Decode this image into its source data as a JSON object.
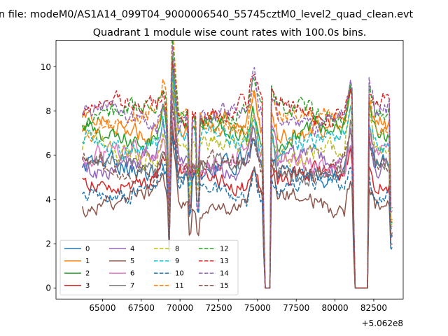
{
  "chart_data": {
    "type": "line",
    "suptitle": "n file: modeM0/AS1A14_099T04_9000006540_55745cztM0_level2_quad_clean.evt",
    "title": "Quadrant 1 module wise count rates with 100.0s bins.",
    "xlabel": "",
    "ylabel": "",
    "x_offset_label": "+5.062e8",
    "xlim": [
      62000,
      84400
    ],
    "ylim": [
      -0.5,
      11.2
    ],
    "x_ticks": [
      65000,
      67500,
      70000,
      72500,
      75000,
      77500,
      80000,
      82500
    ],
    "x_tick_labels": [
      "65000",
      "67500",
      "70000",
      "72500",
      "75000",
      "77500",
      "80000",
      "82500"
    ],
    "y_ticks": [
      0,
      2,
      4,
      6,
      8,
      10
    ],
    "y_tick_labels": [
      "0",
      "2",
      "4",
      "6",
      "8",
      "10"
    ],
    "x_start": 63700,
    "x_end": 83700,
    "bin_width": 100,
    "gaps": [
      [
        75500,
        75800
      ],
      [
        81300,
        82100
      ]
    ],
    "dips": [
      {
        "center": 69300,
        "depth": 0.7
      },
      {
        "center": 70650,
        "depth": 0.5
      },
      {
        "center": 71150,
        "depth": 0.45
      },
      {
        "center": 75450,
        "depth": 0.9
      },
      {
        "center": 81250,
        "depth": 0.9
      },
      {
        "center": 83650,
        "depth": 0.85
      }
    ],
    "spikes": [
      {
        "center": 68900,
        "amp": 1.2
      },
      {
        "center": 69500,
        "amp": 3.2
      },
      {
        "center": 74750,
        "amp": 1.6
      },
      {
        "center": 75900,
        "amp": 1.0
      },
      {
        "center": 81000,
        "amp": 1.5
      },
      {
        "center": 82200,
        "amp": 1.2
      }
    ],
    "legend": {
      "location": "lower-left",
      "columns": 4
    },
    "series": [
      {
        "name": "0",
        "level": 5.3,
        "noise": 0.35,
        "color": "#1f77b4",
        "dash": "solid"
      },
      {
        "name": "1",
        "level": 7.3,
        "noise": 0.35,
        "color": "#ff7f0e",
        "dash": "solid"
      },
      {
        "name": "2",
        "level": 7.0,
        "noise": 0.35,
        "color": "#2ca02c",
        "dash": "solid"
      },
      {
        "name": "3",
        "level": 4.9,
        "noise": 0.3,
        "color": "#d62728",
        "dash": "solid"
      },
      {
        "name": "4",
        "level": 5.6,
        "noise": 0.35,
        "color": "#9467bd",
        "dash": "solid"
      },
      {
        "name": "5",
        "level": 3.9,
        "noise": 0.3,
        "color": "#8c564b",
        "dash": "solid"
      },
      {
        "name": "6",
        "level": 5.8,
        "noise": 0.35,
        "color": "#e377c2",
        "dash": "solid"
      },
      {
        "name": "7",
        "level": 5.4,
        "noise": 0.35,
        "color": "#7f7f7f",
        "dash": "solid"
      },
      {
        "name": "8",
        "level": 6.2,
        "noise": 0.35,
        "color": "#bcbd22",
        "dash": "dashed"
      },
      {
        "name": "9",
        "level": 6.6,
        "noise": 0.35,
        "color": "#17becf",
        "dash": "dashed"
      },
      {
        "name": "10",
        "level": 4.5,
        "noise": 0.3,
        "color": "#1f77b4",
        "dash": "dashed"
      },
      {
        "name": "11",
        "level": 7.6,
        "noise": 0.35,
        "color": "#ff7f0e",
        "dash": "dashed"
      },
      {
        "name": "12",
        "level": 7.9,
        "noise": 0.35,
        "color": "#2ca02c",
        "dash": "dashed"
      },
      {
        "name": "13",
        "level": 8.1,
        "noise": 0.35,
        "color": "#d62728",
        "dash": "dashed"
      },
      {
        "name": "14",
        "level": 7.7,
        "noise": 0.35,
        "color": "#9467bd",
        "dash": "dashed"
      },
      {
        "name": "15",
        "level": 5.4,
        "noise": 0.35,
        "color": "#8c564b",
        "dash": "dashed"
      }
    ]
  }
}
